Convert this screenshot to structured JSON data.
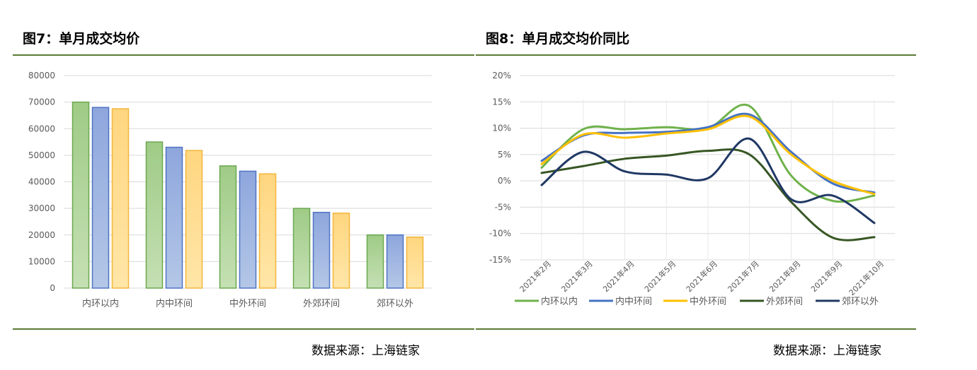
{
  "colors": {
    "green": "#6fb24b",
    "blue": "#4472c4",
    "yellow": "#ffc000",
    "darkgreen": "#375623",
    "navy": "#203864",
    "rule": "#5b7a34"
  },
  "left_panel": {
    "title": "图7：单月成交均价",
    "source": "数据来源：上海链家"
  },
  "right_panel": {
    "title": "图8：单月成交均价同比",
    "source": "数据来源：上海链家"
  },
  "chart_data": [
    {
      "type": "bar",
      "title": "",
      "categories": [
        "内环以内",
        "内中环间",
        "中外环间",
        "外郊环间",
        "郊环以外"
      ],
      "series": [
        {
          "values": [
            70000,
            55000,
            46000,
            30000,
            20000
          ]
        },
        {
          "values": [
            68000,
            53000,
            44000,
            28500,
            20000
          ]
        },
        {
          "values": [
            67500,
            51800,
            43000,
            28200,
            19200
          ]
        }
      ],
      "yticks": [
        "0",
        "10000",
        "20000",
        "30000",
        "40000",
        "50000",
        "60000",
        "70000",
        "80000"
      ],
      "ylim": [
        0,
        80000
      ],
      "grid": true,
      "legend": "none"
    },
    {
      "type": "line",
      "title": "",
      "x": [
        "2021年2月",
        "2021年3月",
        "2021年4月",
        "2021年5月",
        "2021年6月",
        "2021年7月",
        "2021年8月",
        "2021年9月",
        "2021年10月"
      ],
      "series": [
        {
          "name": "内环以内",
          "values": [
            2.5,
            9.8,
            9.8,
            10.2,
            10.0,
            14.2,
            1.0,
            -3.8,
            -2.8
          ]
        },
        {
          "name": "内中环间",
          "values": [
            3.8,
            8.6,
            9.1,
            9.3,
            10.2,
            12.6,
            5.5,
            -0.5,
            -2.2
          ]
        },
        {
          "name": "中外环间",
          "values": [
            3.2,
            8.8,
            8.2,
            9.0,
            9.8,
            12.2,
            5.0,
            0.0,
            -2.5
          ]
        },
        {
          "name": "外郊环间",
          "values": [
            1.5,
            2.8,
            4.2,
            4.8,
            5.7,
            5.0,
            -4.0,
            -10.8,
            -10.7
          ]
        },
        {
          "name": "郊环以外",
          "values": [
            -0.8,
            5.5,
            1.8,
            1.2,
            0.5,
            8.0,
            -3.5,
            -2.8,
            -8.0
          ]
        }
      ],
      "yticks": [
        "-15%",
        "-10%",
        "-5%",
        "0%",
        "5%",
        "10%",
        "15%",
        "20%"
      ],
      "ylim": [
        -15,
        20
      ],
      "grid": true,
      "legend": "bottom"
    }
  ]
}
